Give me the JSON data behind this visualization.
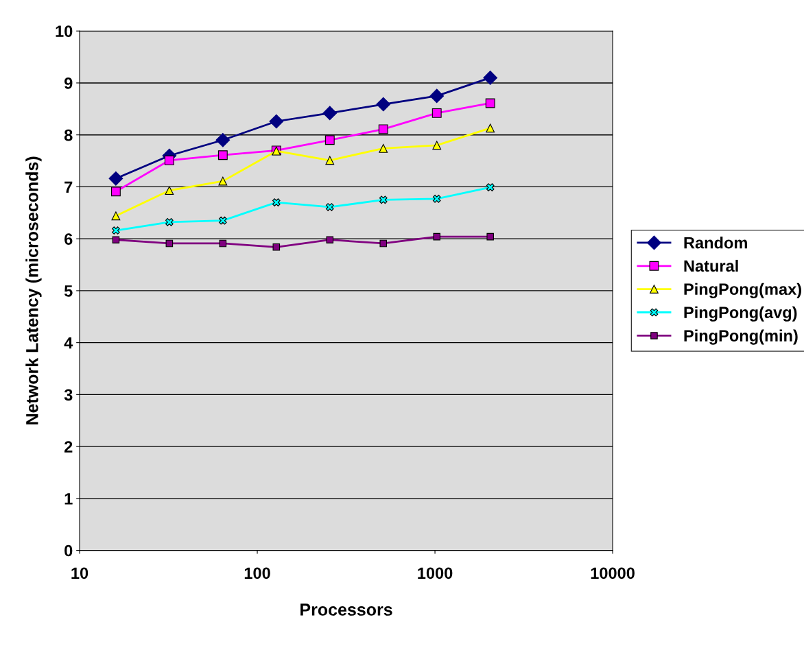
{
  "chart_data": {
    "type": "line",
    "xlabel": "Processors",
    "ylabel": "Network Latency (microseconds)",
    "x": [
      16,
      32,
      64,
      128,
      256,
      512,
      1024,
      2048
    ],
    "log": "x",
    "xlim": [
      10,
      10000
    ],
    "xticks": [
      10,
      100,
      1000,
      10000
    ],
    "ylim": [
      0,
      10
    ],
    "yticks": [
      0,
      1,
      2,
      3,
      4,
      5,
      6,
      7,
      8,
      9,
      10
    ],
    "grid": "y",
    "legend": "right",
    "series": [
      {
        "name": "Random",
        "color": "#000080",
        "marker": "diamond",
        "values": [
          7.16,
          7.6,
          7.9,
          8.26,
          8.42,
          8.59,
          8.75,
          9.1
        ]
      },
      {
        "name": "Natural",
        "color": "#ff00ff",
        "marker": "square",
        "values": [
          6.91,
          7.51,
          7.61,
          7.7,
          7.9,
          8.11,
          8.42,
          8.61
        ]
      },
      {
        "name": "PingPong(max)",
        "color": "#ffff00",
        "marker": "triangle",
        "values": [
          6.44,
          6.93,
          7.11,
          7.69,
          7.51,
          7.74,
          7.8,
          8.13
        ]
      },
      {
        "name": "PingPong(avg)",
        "color": "#00ffff",
        "marker": "cross",
        "values": [
          6.16,
          6.32,
          6.35,
          6.7,
          6.61,
          6.75,
          6.77,
          6.99
        ]
      },
      {
        "name": "PingPong(min)",
        "color": "#800080",
        "marker": "square",
        "values": [
          5.98,
          5.91,
          5.91,
          5.84,
          5.98,
          5.91,
          6.04,
          6.04
        ]
      }
    ]
  }
}
